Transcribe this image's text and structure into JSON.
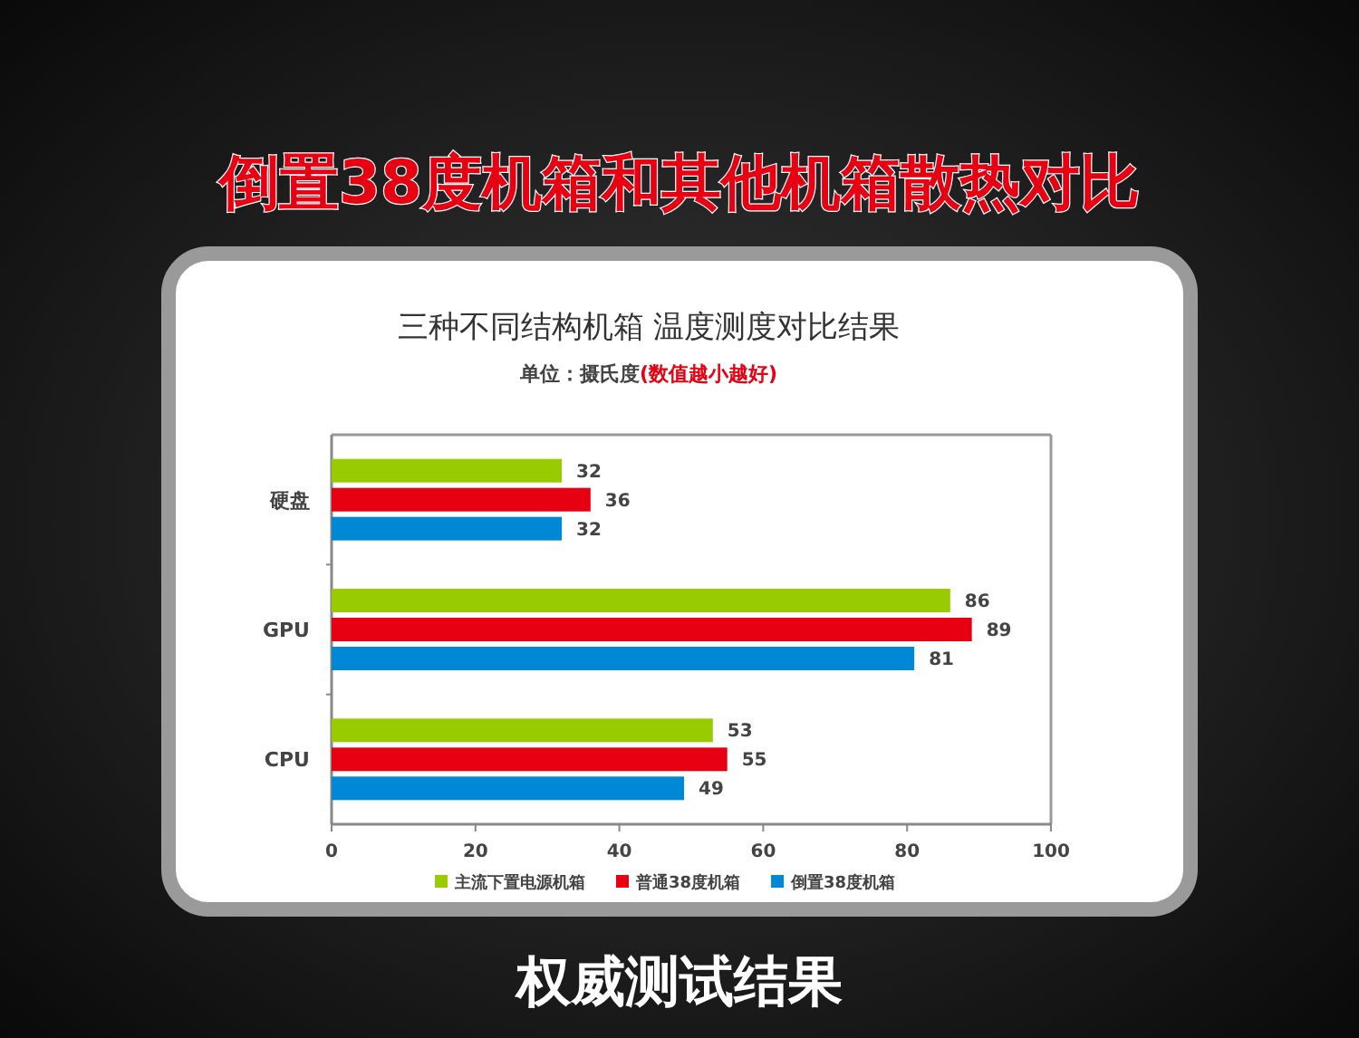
{
  "chart_data": {
    "type": "bar",
    "orientation": "horizontal",
    "title": "倒置38度机箱和其他机箱散热对比",
    "subtitle": "三种不同结构机箱 温度测度对比结果",
    "annotations": [
      "单位：摄氏度",
      "(数值越小越好)",
      "权威测试结果"
    ],
    "categories": [
      "硬盘",
      "GPU",
      "CPU"
    ],
    "series": [
      {
        "name": "主流下置电源机箱",
        "color": "#99cc00",
        "values": [
          32,
          86,
          53
        ]
      },
      {
        "name": "普通38度机箱",
        "color": "#e60012",
        "values": [
          36,
          89,
          55
        ]
      },
      {
        "name": "倒置38度机箱",
        "color": "#0088d6",
        "values": [
          32,
          81,
          49
        ]
      }
    ],
    "xlim": [
      0,
      100
    ],
    "xticks": [
      0,
      20,
      40,
      60,
      80,
      100
    ],
    "data_labels": true,
    "legend": "bottom",
    "grid": false
  }
}
